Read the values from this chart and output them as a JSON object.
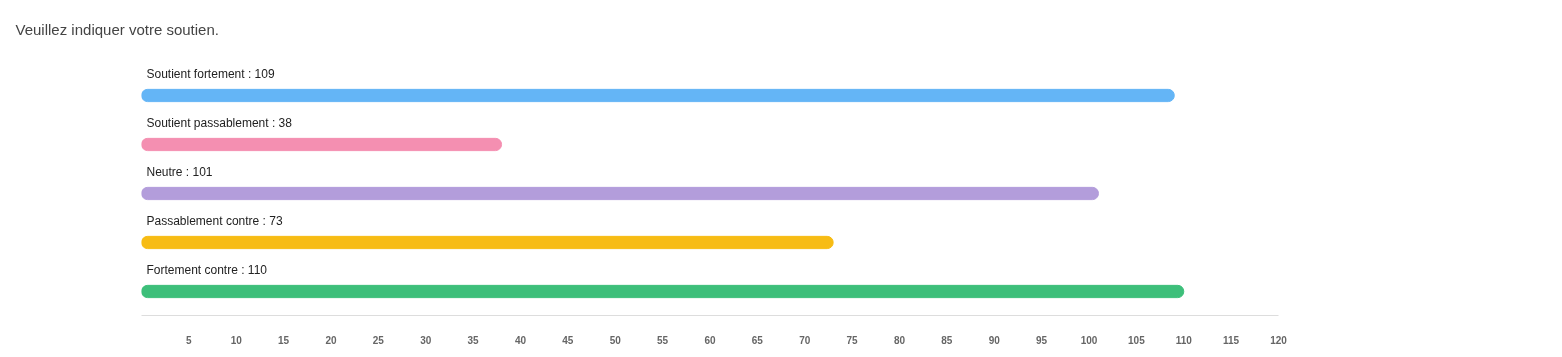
{
  "chart_data": {
    "type": "bar",
    "orientation": "horizontal",
    "title": "Veuillez indiquer votre soutien.",
    "categories": [
      "Soutient fortement : 109",
      "Soutient passablement : 38",
      "Neutre : 101",
      "Passablement contre : 73",
      "Fortement contre : 110"
    ],
    "values": [
      109,
      38,
      101,
      73,
      110
    ],
    "colors": [
      "#64b5f6",
      "#f48fb1",
      "#b39ddb",
      "#f7bc14",
      "#3dbf7a"
    ],
    "xlim": [
      0,
      120
    ],
    "xticks": [
      5,
      10,
      15,
      20,
      25,
      30,
      35,
      40,
      45,
      50,
      55,
      60,
      65,
      70,
      75,
      80,
      85,
      90,
      95,
      100,
      105,
      110,
      115,
      120
    ],
    "grid": false
  }
}
